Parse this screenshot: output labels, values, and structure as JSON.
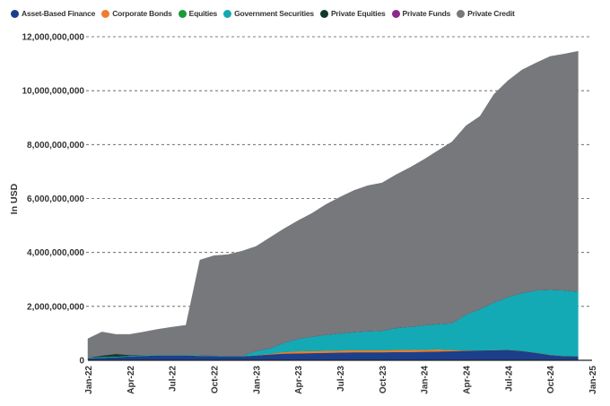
{
  "chart_data": {
    "type": "area",
    "stacked": true,
    "title": "",
    "xlabel": "",
    "ylabel": "In USD",
    "ylim": [
      0,
      12000000000
    ],
    "yticks": [
      0,
      2000000000,
      4000000000,
      6000000000,
      8000000000,
      10000000000,
      12000000000
    ],
    "ytick_labels": [
      "0",
      "2,000,000,000",
      "4,000,000,000",
      "6,000,000,000",
      "8,000,000,000",
      "10,000,000,000",
      "12,000,000,000"
    ],
    "xtick_labels": [
      "Jan-22",
      "Apr-22",
      "Jul-22",
      "Oct-22",
      "Jan-23",
      "Apr-23",
      "Jul-23",
      "Oct-23",
      "Jan-24",
      "Apr-24",
      "Jul-24",
      "Oct-24",
      "Jan-25"
    ],
    "grid": "horizontal dashed",
    "legend_position": "top",
    "x": [
      "Jan-22",
      "Feb-22",
      "Mar-22",
      "Apr-22",
      "May-22",
      "Jun-22",
      "Jul-22",
      "Aug-22",
      "Sep-22",
      "Oct-22",
      "Nov-22",
      "Dec-22",
      "Jan-23",
      "Feb-23",
      "Mar-23",
      "Apr-23",
      "May-23",
      "Jun-23",
      "Jul-23",
      "Aug-23",
      "Sep-23",
      "Oct-23",
      "Nov-23",
      "Dec-23",
      "Jan-24",
      "Feb-24",
      "Mar-24",
      "Apr-24",
      "May-24",
      "Jun-24",
      "Jul-24",
      "Aug-24",
      "Sep-24",
      "Oct-24",
      "Nov-24",
      "Dec-24"
    ],
    "series": [
      {
        "name": "Asset-Based Finance",
        "color": "#1b3f8b",
        "values": [
          80000000.0,
          100000000.0,
          120000000.0,
          150000000.0,
          170000000.0,
          180000000.0,
          180000000.0,
          180000000.0,
          170000000.0,
          160000000.0,
          150000000.0,
          150000000.0,
          180000000.0,
          220000000.0,
          250000000.0,
          260000000.0,
          270000000.0,
          280000000.0,
          290000000.0,
          300000000.0,
          300000000.0,
          300000000.0,
          310000000.0,
          310000000.0,
          320000000.0,
          330000000.0,
          340000000.0,
          360000000.0,
          370000000.0,
          380000000.0,
          390000000.0,
          350000000.0,
          280000000.0,
          200000000.0,
          160000000.0,
          150000000.0
        ]
      },
      {
        "name": "Corporate Bonds",
        "color": "#f07b2d",
        "values": [
          0,
          0,
          0,
          0,
          0,
          0,
          0,
          0,
          0,
          0,
          0,
          0,
          10000000.0,
          30000000.0,
          60000000.0,
          80000000.0,
          80000000.0,
          80000000.0,
          80000000.0,
          80000000.0,
          80000000.0,
          80000000.0,
          80000000.0,
          80000000.0,
          80000000.0,
          80000000.0,
          50000000.0,
          20000000.0,
          10000000.0,
          10000000.0,
          10000000.0,
          10000000.0,
          10000000.0,
          10000000.0,
          10000000.0,
          10000000.0
        ]
      },
      {
        "name": "Equities",
        "color": "#1a9a3a",
        "values": [
          0,
          0,
          0,
          0,
          0,
          0,
          0,
          0,
          0,
          0,
          0,
          0,
          0,
          0,
          0,
          0,
          0,
          0,
          0,
          0,
          0,
          0,
          0,
          0,
          0,
          0,
          0,
          0,
          0,
          0,
          0,
          0,
          0,
          0,
          0,
          0
        ]
      },
      {
        "name": "Government Securities",
        "color": "#13aab5",
        "values": [
          20000000.0,
          30000000.0,
          20000000.0,
          20000000.0,
          20000000.0,
          20000000.0,
          20000000.0,
          20000000.0,
          20000000.0,
          20000000.0,
          20000000.0,
          20000000.0,
          160000000.0,
          200000000.0,
          340000000.0,
          460000000.0,
          530000000.0,
          590000000.0,
          630000000.0,
          670000000.0,
          700000000.0,
          720000000.0,
          810000000.0,
          860000000.0,
          900000000.0,
          940000000.0,
          990000000.0,
          1320000000.0,
          1520000000.0,
          1760000000.0,
          1950000000.0,
          2140000000.0,
          2310000000.0,
          2410000000.0,
          2430000000.0,
          2390000000.0
        ]
      },
      {
        "name": "Private Equities",
        "color": "#0e3b27",
        "values": [
          0,
          50000000.0,
          100000000.0,
          30000000.0,
          0,
          0,
          0,
          0,
          0,
          0,
          0,
          0,
          0,
          0,
          0,
          0,
          0,
          0,
          0,
          0,
          0,
          0,
          0,
          0,
          0,
          0,
          0,
          0,
          0,
          0,
          0,
          0,
          0,
          0,
          0,
          0
        ]
      },
      {
        "name": "Private Funds",
        "color": "#8b2a8c",
        "values": [
          0,
          0,
          0,
          0,
          0,
          0,
          0,
          0,
          0,
          0,
          0,
          0,
          0,
          0,
          0,
          0,
          0,
          0,
          0,
          0,
          0,
          0,
          0,
          0,
          0,
          0,
          0,
          0,
          0,
          0,
          0,
          0,
          0,
          0,
          0,
          0
        ]
      },
      {
        "name": "Private Credit",
        "color": "#76787b",
        "values": [
          700000000.0,
          870000000.0,
          720000000.0,
          760000000.0,
          860000000.0,
          950000000.0,
          1030000000.0,
          1100000000.0,
          3530000000.0,
          3700000000.0,
          3750000000.0,
          3880000000.0,
          3870000000.0,
          4100000000.0,
          4230000000.0,
          4380000000.0,
          4570000000.0,
          4830000000.0,
          5050000000.0,
          5250000000.0,
          5400000000.0,
          5480000000.0,
          5680000000.0,
          5900000000.0,
          6150000000.0,
          6430000000.0,
          6720000000.0,
          7000000000.0,
          7150000000.0,
          7720000000.0,
          8020000000.0,
          8270000000.0,
          8430000000.0,
          8650000000.0,
          8760000000.0,
          8910000000.0
        ]
      }
    ]
  }
}
